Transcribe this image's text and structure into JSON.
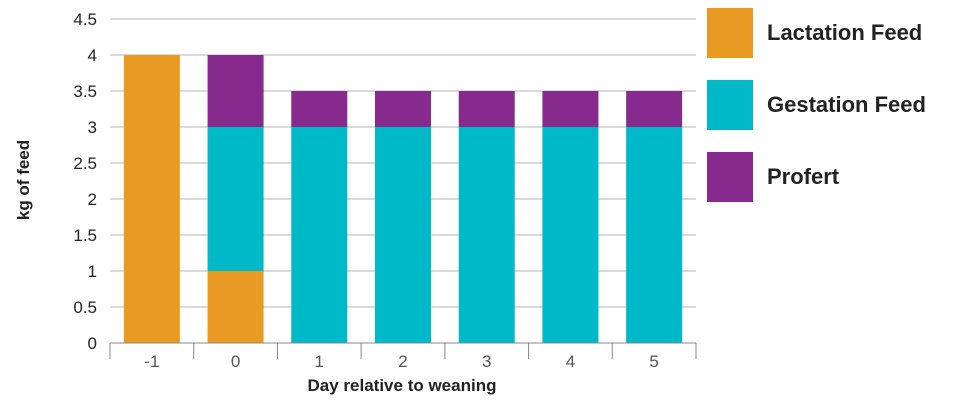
{
  "chart_data": {
    "type": "bar",
    "stacked": true,
    "categories": [
      "-1",
      "0",
      "1",
      "2",
      "3",
      "4",
      "5"
    ],
    "series": [
      {
        "name": "Lactation Feed",
        "color": "#E89A22",
        "values": [
          4,
          1,
          0,
          0,
          0,
          0,
          0
        ]
      },
      {
        "name": "Gestation Feed",
        "color": "#00B9C8",
        "values": [
          0,
          2,
          3,
          3,
          3,
          3,
          3
        ]
      },
      {
        "name": "Profert",
        "color": "#862A8E",
        "values": [
          0,
          1,
          0.5,
          0.5,
          0.5,
          0.5,
          0.5
        ]
      }
    ],
    "xlabel": "Day relative to weaning",
    "ylabel": "kg of feed",
    "ylim": [
      0,
      4.5
    ],
    "yticks": [
      "0",
      "0.5",
      "1",
      "1.5",
      "2",
      "2.5",
      "3",
      "3.5",
      "4",
      "4.5"
    ],
    "grid": true,
    "legend_position": "right"
  }
}
